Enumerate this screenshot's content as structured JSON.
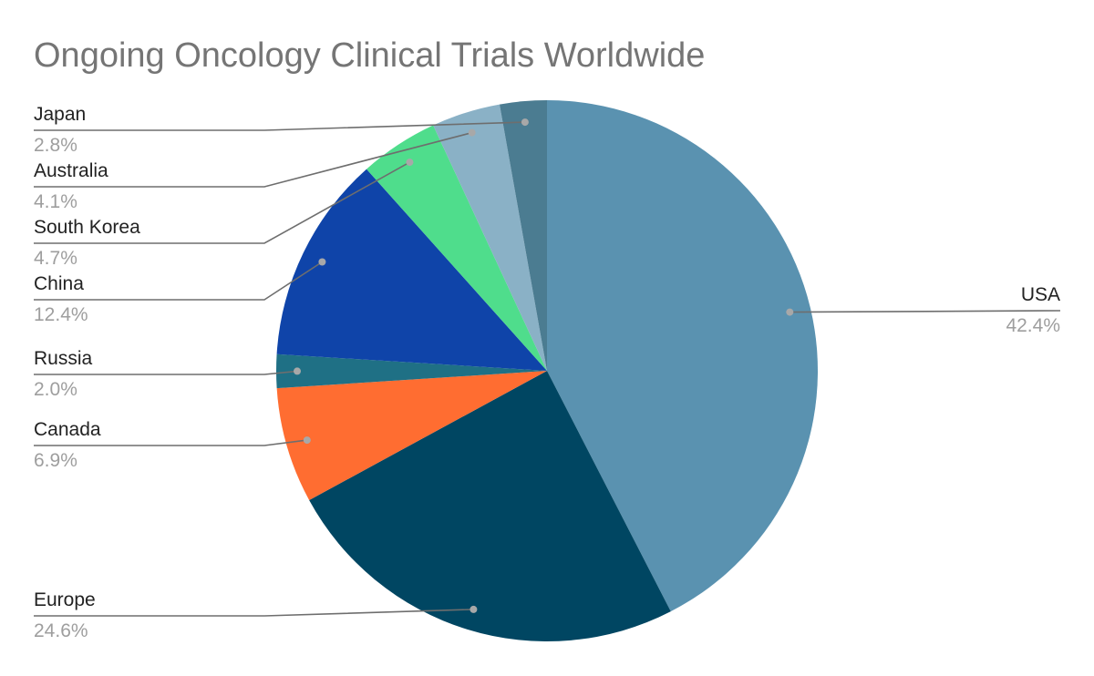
{
  "chart_data": {
    "type": "pie",
    "title": "Ongoing Oncology Clinical Trials Worldwide",
    "start_angle_deg": 0,
    "direction": "clockwise",
    "slices": [
      {
        "label": "USA",
        "value": 42.4,
        "value_label": "42.4%",
        "color": "#5a92b0",
        "side": "right"
      },
      {
        "label": "Europe",
        "value": 24.6,
        "value_label": "24.6%",
        "color": "#004662",
        "side": "left"
      },
      {
        "label": "Canada",
        "value": 6.9,
        "value_label": "6.9%",
        "color": "#ff6d31",
        "side": "left"
      },
      {
        "label": "Russia",
        "value": 2.0,
        "value_label": "2.0%",
        "color": "#1f7085",
        "side": "left"
      },
      {
        "label": "China",
        "value": 12.4,
        "value_label": "12.4%",
        "color": "#0f44a9",
        "side": "left"
      },
      {
        "label": "South Korea",
        "value": 4.7,
        "value_label": "4.7%",
        "color": "#4fdd8c",
        "side": "left"
      },
      {
        "label": "Australia",
        "value": 4.1,
        "value_label": "4.1%",
        "color": "#8ab1c6",
        "side": "left"
      },
      {
        "label": "Japan",
        "value": 2.8,
        "value_label": "2.8%",
        "color": "#4b7c91",
        "side": "left"
      }
    ],
    "legend": "none",
    "leader_line_color": "#6e6e6e",
    "leader_dot_color": "#a8a8a8"
  }
}
